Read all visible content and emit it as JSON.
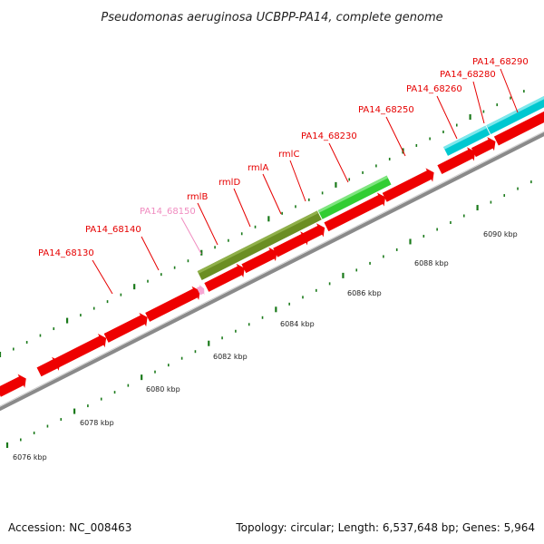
{
  "title": "Pseudomonas aeruginosa UCBPP-PA14, complete genome",
  "footer": {
    "accession": "Accession: NC_008463",
    "summary": "Topology: circular; Length: 6,537,648 bp; Genes: 5,964"
  },
  "colors": {
    "label_red": "#e60000",
    "label_pink": "#f08cc0",
    "gene_red": "#ee0000",
    "gene_olive": "#6b8e23",
    "gene_green": "#32cd32",
    "gene_cyan": "#00c8d0",
    "gene_pink": "#f7a8d4",
    "tick_green": "#1a7a1a",
    "backbone": "#8a8a8a"
  },
  "kbp_labels": [
    "6076 kbp",
    "6078 kbp",
    "6080 kbp",
    "6082 kbp",
    "6084 kbp",
    "6086 kbp",
    "6088 kbp",
    "6090 kbp"
  ],
  "gene_labels": [
    {
      "name": "PA14_68130",
      "color": "red"
    },
    {
      "name": "PA14_68140",
      "color": "red"
    },
    {
      "name": "PA14_68150",
      "color": "pink"
    },
    {
      "name": "rmlB",
      "color": "red"
    },
    {
      "name": "rmlD",
      "color": "red"
    },
    {
      "name": "rmlA",
      "color": "red"
    },
    {
      "name": "rmlC",
      "color": "red"
    },
    {
      "name": "PA14_68230",
      "color": "red"
    },
    {
      "name": "PA14_68250",
      "color": "red"
    },
    {
      "name": "PA14_68260",
      "color": "red"
    },
    {
      "name": "PA14_68280",
      "color": "red"
    },
    {
      "name": "PA14_68290",
      "color": "red"
    }
  ]
}
